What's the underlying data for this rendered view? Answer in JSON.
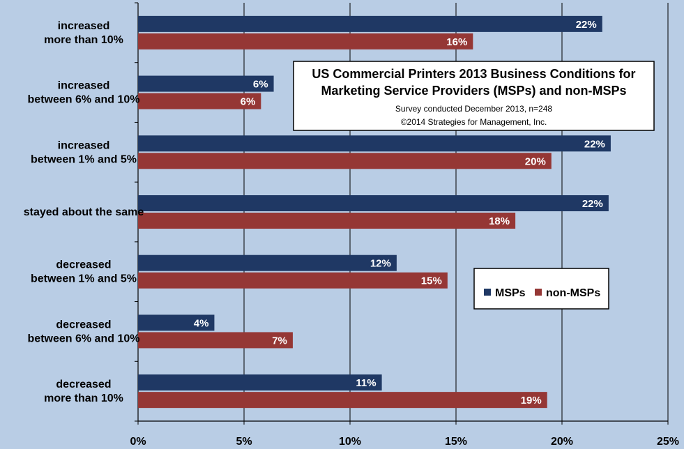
{
  "chart_data": {
    "type": "bar",
    "orientation": "horizontal",
    "title": "US Commercial Printers 2013 Business Conditions for Marketing Service Providers (MSPs) and non-MSPs",
    "title_lines": [
      "US Commercial Printers 2013 Business Conditions for",
      "Marketing Service Providers (MSPs) and non-MSPs"
    ],
    "subtitle_lines": [
      "Survey conducted December 2013,  n=248",
      "©2014 Strategies for Management, Inc."
    ],
    "categories": [
      [
        "increased",
        "more than 10%"
      ],
      [
        "increased",
        "between 6% and 10%"
      ],
      [
        "increased",
        "between 1% and 5%"
      ],
      [
        "stayed about the same"
      ],
      [
        "decreased",
        "between 1% and 5%"
      ],
      [
        "decreased",
        "between 6% and 10%"
      ],
      [
        "decreased",
        "more than 10%"
      ]
    ],
    "series": [
      {
        "name": "MSPs",
        "color": "#1f3864",
        "values": [
          21.9,
          6.4,
          22.3,
          22.2,
          12.2,
          3.6,
          11.5
        ],
        "labels": [
          "22%",
          "6%",
          "22%",
          "22%",
          "12%",
          "4%",
          "11%"
        ]
      },
      {
        "name": "non-MSPs",
        "color": "#953735",
        "values": [
          15.8,
          5.8,
          19.5,
          17.8,
          14.6,
          7.3,
          19.3
        ],
        "labels": [
          "16%",
          "6%",
          "20%",
          "18%",
          "15%",
          "7%",
          "19%"
        ]
      }
    ],
    "xlim": [
      0,
      25
    ],
    "xticks": [
      "0%",
      "5%",
      "10%",
      "15%",
      "20%",
      "25%"
    ],
    "grid": true,
    "legend_position": "right"
  }
}
